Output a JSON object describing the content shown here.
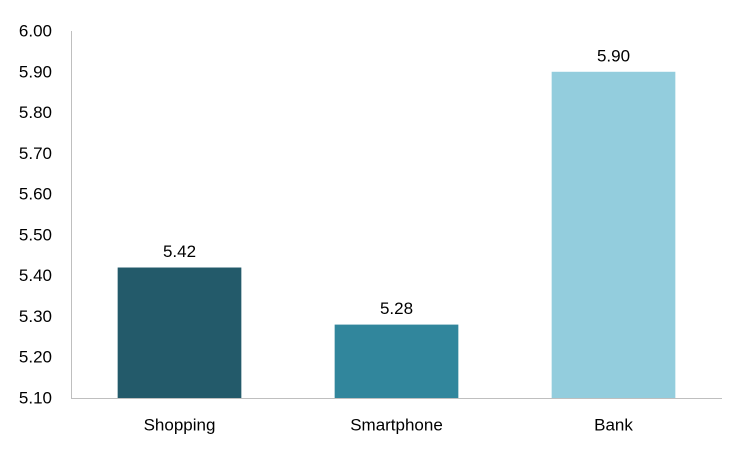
{
  "chart_data": {
    "type": "bar",
    "categories": [
      "Shopping",
      "Smartphone",
      "Bank"
    ],
    "values": [
      5.42,
      5.28,
      5.9
    ],
    "value_labels": [
      "5.42",
      "5.28",
      "5.90"
    ],
    "colors": [
      "#235a6a",
      "#31869c",
      "#93cddd"
    ],
    "ylim": [
      5.1,
      6.0
    ],
    "yticks": [
      "5.10",
      "5.20",
      "5.30",
      "5.40",
      "5.50",
      "5.60",
      "5.70",
      "5.80",
      "5.90",
      "6.00"
    ],
    "grid": false,
    "legend": "none",
    "title": "",
    "xlabel": "",
    "ylabel": ""
  }
}
